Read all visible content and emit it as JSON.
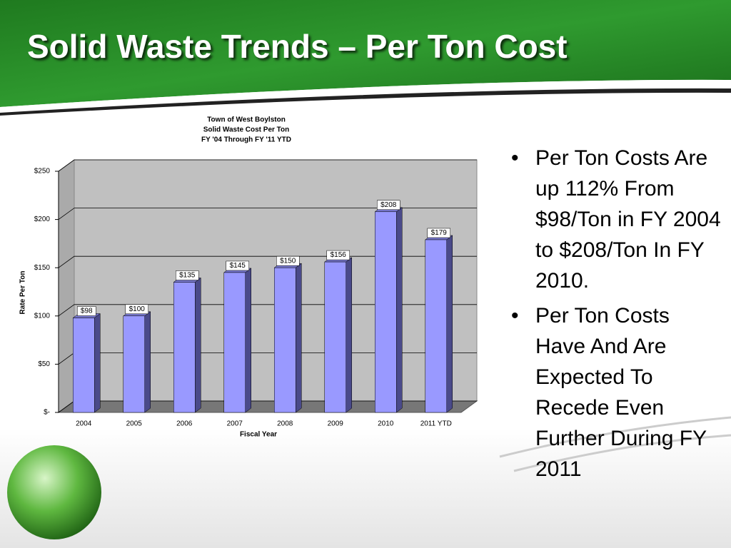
{
  "slide": {
    "title": "Solid Waste Trends – Per Ton Cost",
    "bullets": [
      "Per Ton Costs Are up 112% From $98/Ton in FY 2004 to $208/Ton In FY 2010.",
      "Per Ton Costs Have And Are Expected To Recede Even Further During FY 2011"
    ]
  },
  "chart_data": {
    "type": "bar",
    "title": [
      "Town of West Boylston",
      "Solid Waste Cost Per Ton",
      "FY '04 Through FY '11 YTD"
    ],
    "x_label": "Fiscal Year",
    "y_label": "Rate Per Ton",
    "categories": [
      "2004",
      "2005",
      "2006",
      "2007",
      "2008",
      "2009",
      "2010",
      "2011 YTD"
    ],
    "values": [
      98,
      100,
      135,
      145,
      150,
      156,
      208,
      179
    ],
    "value_labels": [
      "$98",
      "$100",
      "$135",
      "$145",
      "$150",
      "$156",
      "$208",
      "$179"
    ],
    "color": "#9999ff",
    "ylim": [
      0,
      250
    ],
    "yticks": [
      {
        "value": 0,
        "label": "$-"
      },
      {
        "value": 50,
        "label": "$50"
      },
      {
        "value": 100,
        "label": "$100"
      },
      {
        "value": 150,
        "label": "$150"
      },
      {
        "value": 200,
        "label": "$200"
      },
      {
        "value": 250,
        "label": "$250"
      }
    ],
    "grid": true
  }
}
